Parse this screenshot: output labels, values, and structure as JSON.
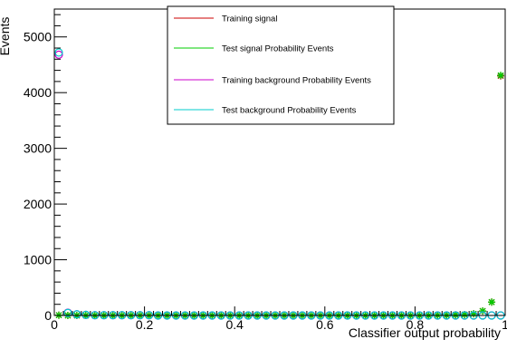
{
  "chart_data": {
    "type": "scatter",
    "xlabel": "Classifier output probability",
    "ylabel": "Events",
    "xlim": [
      0,
      1
    ],
    "ylim": [
      0,
      5500
    ],
    "x_ticks": [
      0,
      0.2,
      0.4,
      0.6,
      0.8,
      1
    ],
    "x_tick_labels": [
      "0",
      "0.2",
      "0.4",
      "0.6",
      "0.8",
      "1"
    ],
    "y_ticks": [
      0,
      1000,
      2000,
      3000,
      4000,
      5000
    ],
    "y_tick_labels": [
      "0",
      "1000",
      "2000",
      "3000",
      "4000",
      "5000"
    ],
    "grid": false,
    "legend_position": "top-center",
    "series": [
      {
        "name": "Training signal",
        "color": "#cc0000",
        "marker": "star",
        "x": [
          0.01,
          0.03,
          0.05,
          0.07,
          0.09,
          0.11,
          0.13,
          0.15,
          0.17,
          0.19,
          0.21,
          0.23,
          0.25,
          0.27,
          0.29,
          0.31,
          0.33,
          0.35,
          0.37,
          0.39,
          0.41,
          0.43,
          0.45,
          0.47,
          0.49,
          0.51,
          0.53,
          0.55,
          0.57,
          0.59,
          0.61,
          0.63,
          0.65,
          0.67,
          0.69,
          0.71,
          0.73,
          0.75,
          0.77,
          0.79,
          0.81,
          0.83,
          0.85,
          0.87,
          0.89,
          0.91,
          0.93,
          0.95,
          0.97,
          0.99
        ],
        "y": [
          5,
          0,
          0,
          0,
          0,
          0,
          0,
          0,
          0,
          0,
          0,
          0,
          0,
          0,
          0,
          0,
          0,
          0,
          0,
          0,
          0,
          0,
          0,
          0,
          0,
          0,
          0,
          0,
          0,
          0,
          0,
          0,
          0,
          0,
          0,
          0,
          0,
          0,
          0,
          0,
          0,
          0,
          5,
          5,
          10,
          15,
          30,
          80,
          240,
          4300
        ]
      },
      {
        "name": "Test signal Probability Events",
        "color": "#00cc00",
        "marker": "star",
        "x": [
          0.01,
          0.03,
          0.05,
          0.07,
          0.09,
          0.11,
          0.13,
          0.15,
          0.17,
          0.19,
          0.21,
          0.23,
          0.25,
          0.27,
          0.29,
          0.31,
          0.33,
          0.35,
          0.37,
          0.39,
          0.41,
          0.43,
          0.45,
          0.47,
          0.49,
          0.51,
          0.53,
          0.55,
          0.57,
          0.59,
          0.61,
          0.63,
          0.65,
          0.67,
          0.69,
          0.71,
          0.73,
          0.75,
          0.77,
          0.79,
          0.81,
          0.83,
          0.85,
          0.87,
          0.89,
          0.91,
          0.93,
          0.95,
          0.97,
          0.99
        ],
        "y": [
          5,
          0,
          0,
          0,
          0,
          0,
          0,
          0,
          0,
          0,
          0,
          0,
          0,
          0,
          0,
          0,
          0,
          0,
          0,
          0,
          0,
          0,
          0,
          0,
          0,
          0,
          0,
          0,
          0,
          0,
          0,
          0,
          0,
          0,
          0,
          0,
          0,
          0,
          0,
          0,
          0,
          0,
          5,
          5,
          10,
          15,
          30,
          80,
          240,
          4310
        ]
      },
      {
        "name": "Training background Probability Events",
        "color": "#cc00cc",
        "marker": "circle",
        "x": [
          0.01,
          0.03,
          0.05,
          0.07,
          0.09,
          0.11,
          0.13,
          0.15,
          0.17,
          0.19,
          0.21,
          0.23,
          0.25,
          0.27,
          0.29,
          0.31,
          0.33,
          0.35,
          0.37,
          0.39,
          0.41,
          0.43,
          0.45,
          0.47,
          0.49,
          0.51,
          0.53,
          0.55,
          0.57,
          0.59,
          0.61,
          0.63,
          0.65,
          0.67,
          0.69,
          0.71,
          0.73,
          0.75,
          0.77,
          0.79,
          0.81,
          0.83,
          0.85,
          0.87,
          0.89,
          0.91,
          0.93,
          0.95,
          0.97,
          0.99
        ],
        "y": [
          4680,
          50,
          20,
          10,
          5,
          5,
          5,
          5,
          5,
          5,
          5,
          0,
          0,
          0,
          0,
          0,
          0,
          0,
          0,
          0,
          0,
          0,
          0,
          0,
          0,
          0,
          0,
          0,
          0,
          0,
          0,
          0,
          0,
          0,
          0,
          0,
          0,
          0,
          0,
          0,
          0,
          0,
          0,
          0,
          0,
          0,
          0,
          0,
          0,
          0
        ]
      },
      {
        "name": "Test background Probability Events",
        "color": "#00cccc",
        "marker": "circle",
        "x": [
          0.01,
          0.03,
          0.05,
          0.07,
          0.09,
          0.11,
          0.13,
          0.15,
          0.17,
          0.19,
          0.21,
          0.23,
          0.25,
          0.27,
          0.29,
          0.31,
          0.33,
          0.35,
          0.37,
          0.39,
          0.41,
          0.43,
          0.45,
          0.47,
          0.49,
          0.51,
          0.53,
          0.55,
          0.57,
          0.59,
          0.61,
          0.63,
          0.65,
          0.67,
          0.69,
          0.71,
          0.73,
          0.75,
          0.77,
          0.79,
          0.81,
          0.83,
          0.85,
          0.87,
          0.89,
          0.91,
          0.93,
          0.95,
          0.97,
          0.99
        ],
        "y": [
          4720,
          45,
          20,
          10,
          5,
          5,
          5,
          5,
          5,
          5,
          5,
          0,
          0,
          0,
          0,
          0,
          0,
          0,
          0,
          0,
          0,
          0,
          0,
          0,
          0,
          0,
          0,
          0,
          0,
          0,
          0,
          0,
          0,
          0,
          0,
          0,
          0,
          0,
          0,
          0,
          0,
          0,
          0,
          0,
          0,
          0,
          0,
          0,
          0,
          0
        ]
      }
    ]
  }
}
